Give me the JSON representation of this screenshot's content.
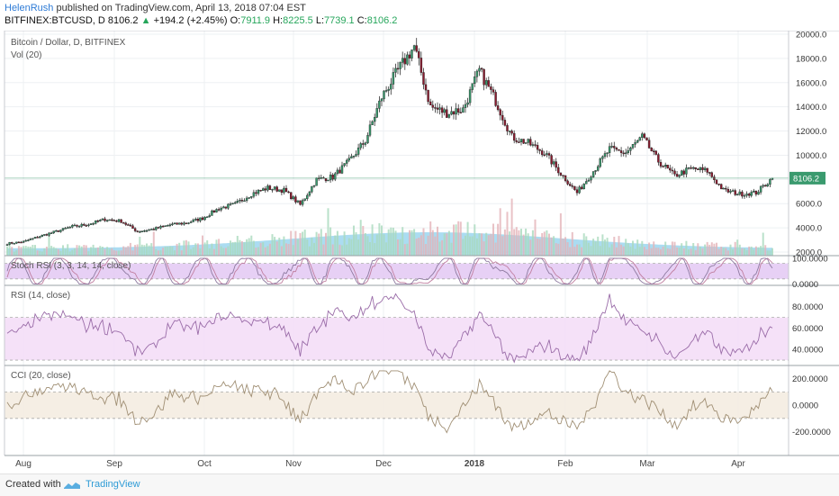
{
  "header": {
    "author": "HelenRush",
    "published": " published on TradingView.com, April 13, 2018 07:04 EST",
    "symbol": "BITFINEX:BTCUSD, D",
    "last": "8106.2",
    "change": "+194.2 (+2.45%)",
    "o_label": "O:",
    "o": "7911.9",
    "h_label": "H:",
    "h": "8225.5",
    "l_label": "L:",
    "l": "7739.1",
    "c_label": "C:",
    "c": "8106.2"
  },
  "footer": {
    "created_with": "Created with",
    "brand": "TradingView"
  },
  "colors": {
    "up": "#3a9a6e",
    "down": "#8b1a2e",
    "volume": "#8fd0ec",
    "stoch_band": "#e3c8f3",
    "rsi_band": "#f3dcf7",
    "cci_band": "#f3ebdf",
    "last_price_tag": "#3a9a6e"
  },
  "chart_data": [
    {
      "type": "candlestick",
      "title": "Bitcoin / Dollar, D, BITFINEX",
      "subtitle": "Vol (20)",
      "x_ticks": [
        "Aug",
        "Sep",
        "Oct",
        "Nov",
        "Dec",
        "2018",
        "Feb",
        "Mar",
        "Apr"
      ],
      "y_ticks": [
        2000,
        4000,
        6000,
        8000,
        10000,
        12000,
        14000,
        16000,
        18000,
        20000
      ],
      "ylim": [
        1700,
        20300
      ],
      "last_price": "8106.2",
      "close_keypoints_by_week": [
        [
          0,
          2700
        ],
        [
          1,
          2850
        ],
        [
          2,
          3300
        ],
        [
          3,
          3700
        ],
        [
          4,
          4100
        ],
        [
          5,
          4300
        ],
        [
          6,
          4700
        ],
        [
          7,
          4550
        ],
        [
          8,
          3700
        ],
        [
          9,
          3900
        ],
        [
          10,
          4250
        ],
        [
          11,
          4400
        ],
        [
          12,
          4800
        ],
        [
          13,
          5600
        ],
        [
          14,
          5950
        ],
        [
          15,
          6800
        ],
        [
          16,
          7300
        ],
        [
          17,
          7100
        ],
        [
          18,
          5900
        ],
        [
          19,
          8000
        ],
        [
          20,
          8200
        ],
        [
          21,
          9500
        ],
        [
          22,
          11200
        ],
        [
          23,
          14800
        ],
        [
          24,
          17000
        ],
        [
          25,
          19000
        ],
        [
          26,
          14000
        ],
        [
          27,
          13500
        ],
        [
          28,
          13800
        ],
        [
          29,
          17000
        ],
        [
          30,
          14500
        ],
        [
          31,
          11500
        ],
        [
          32,
          11000
        ],
        [
          33,
          10200
        ],
        [
          34,
          8500
        ],
        [
          35,
          6900
        ],
        [
          36,
          8700
        ],
        [
          37,
          10500
        ],
        [
          38,
          10200
        ],
        [
          39,
          11500
        ],
        [
          40,
          9500
        ],
        [
          41,
          8300
        ],
        [
          42,
          8900
        ],
        [
          43,
          8700
        ],
        [
          44,
          7100
        ],
        [
          45,
          6800
        ],
        [
          46,
          6900
        ],
        [
          47,
          8106
        ]
      ]
    },
    {
      "type": "line",
      "title": "Stoch RSI (3, 3, 14, 14, close)",
      "y_ticks": [
        "100.0000",
        "0.0000"
      ],
      "ylim": [
        -5,
        110
      ],
      "band": [
        20,
        80
      ]
    },
    {
      "type": "line",
      "title": "RSI (14, close)",
      "y_ticks": [
        "80.0000",
        "60.0000",
        "40.0000"
      ],
      "ylim": [
        25,
        100
      ],
      "band": [
        30,
        70
      ]
    },
    {
      "type": "line",
      "title": "CCI (20, close)",
      "y_ticks": [
        "200.0000",
        "0.0000",
        "-200.0000"
      ],
      "ylim": [
        -380,
        300
      ],
      "band": [
        -100,
        100
      ]
    }
  ]
}
